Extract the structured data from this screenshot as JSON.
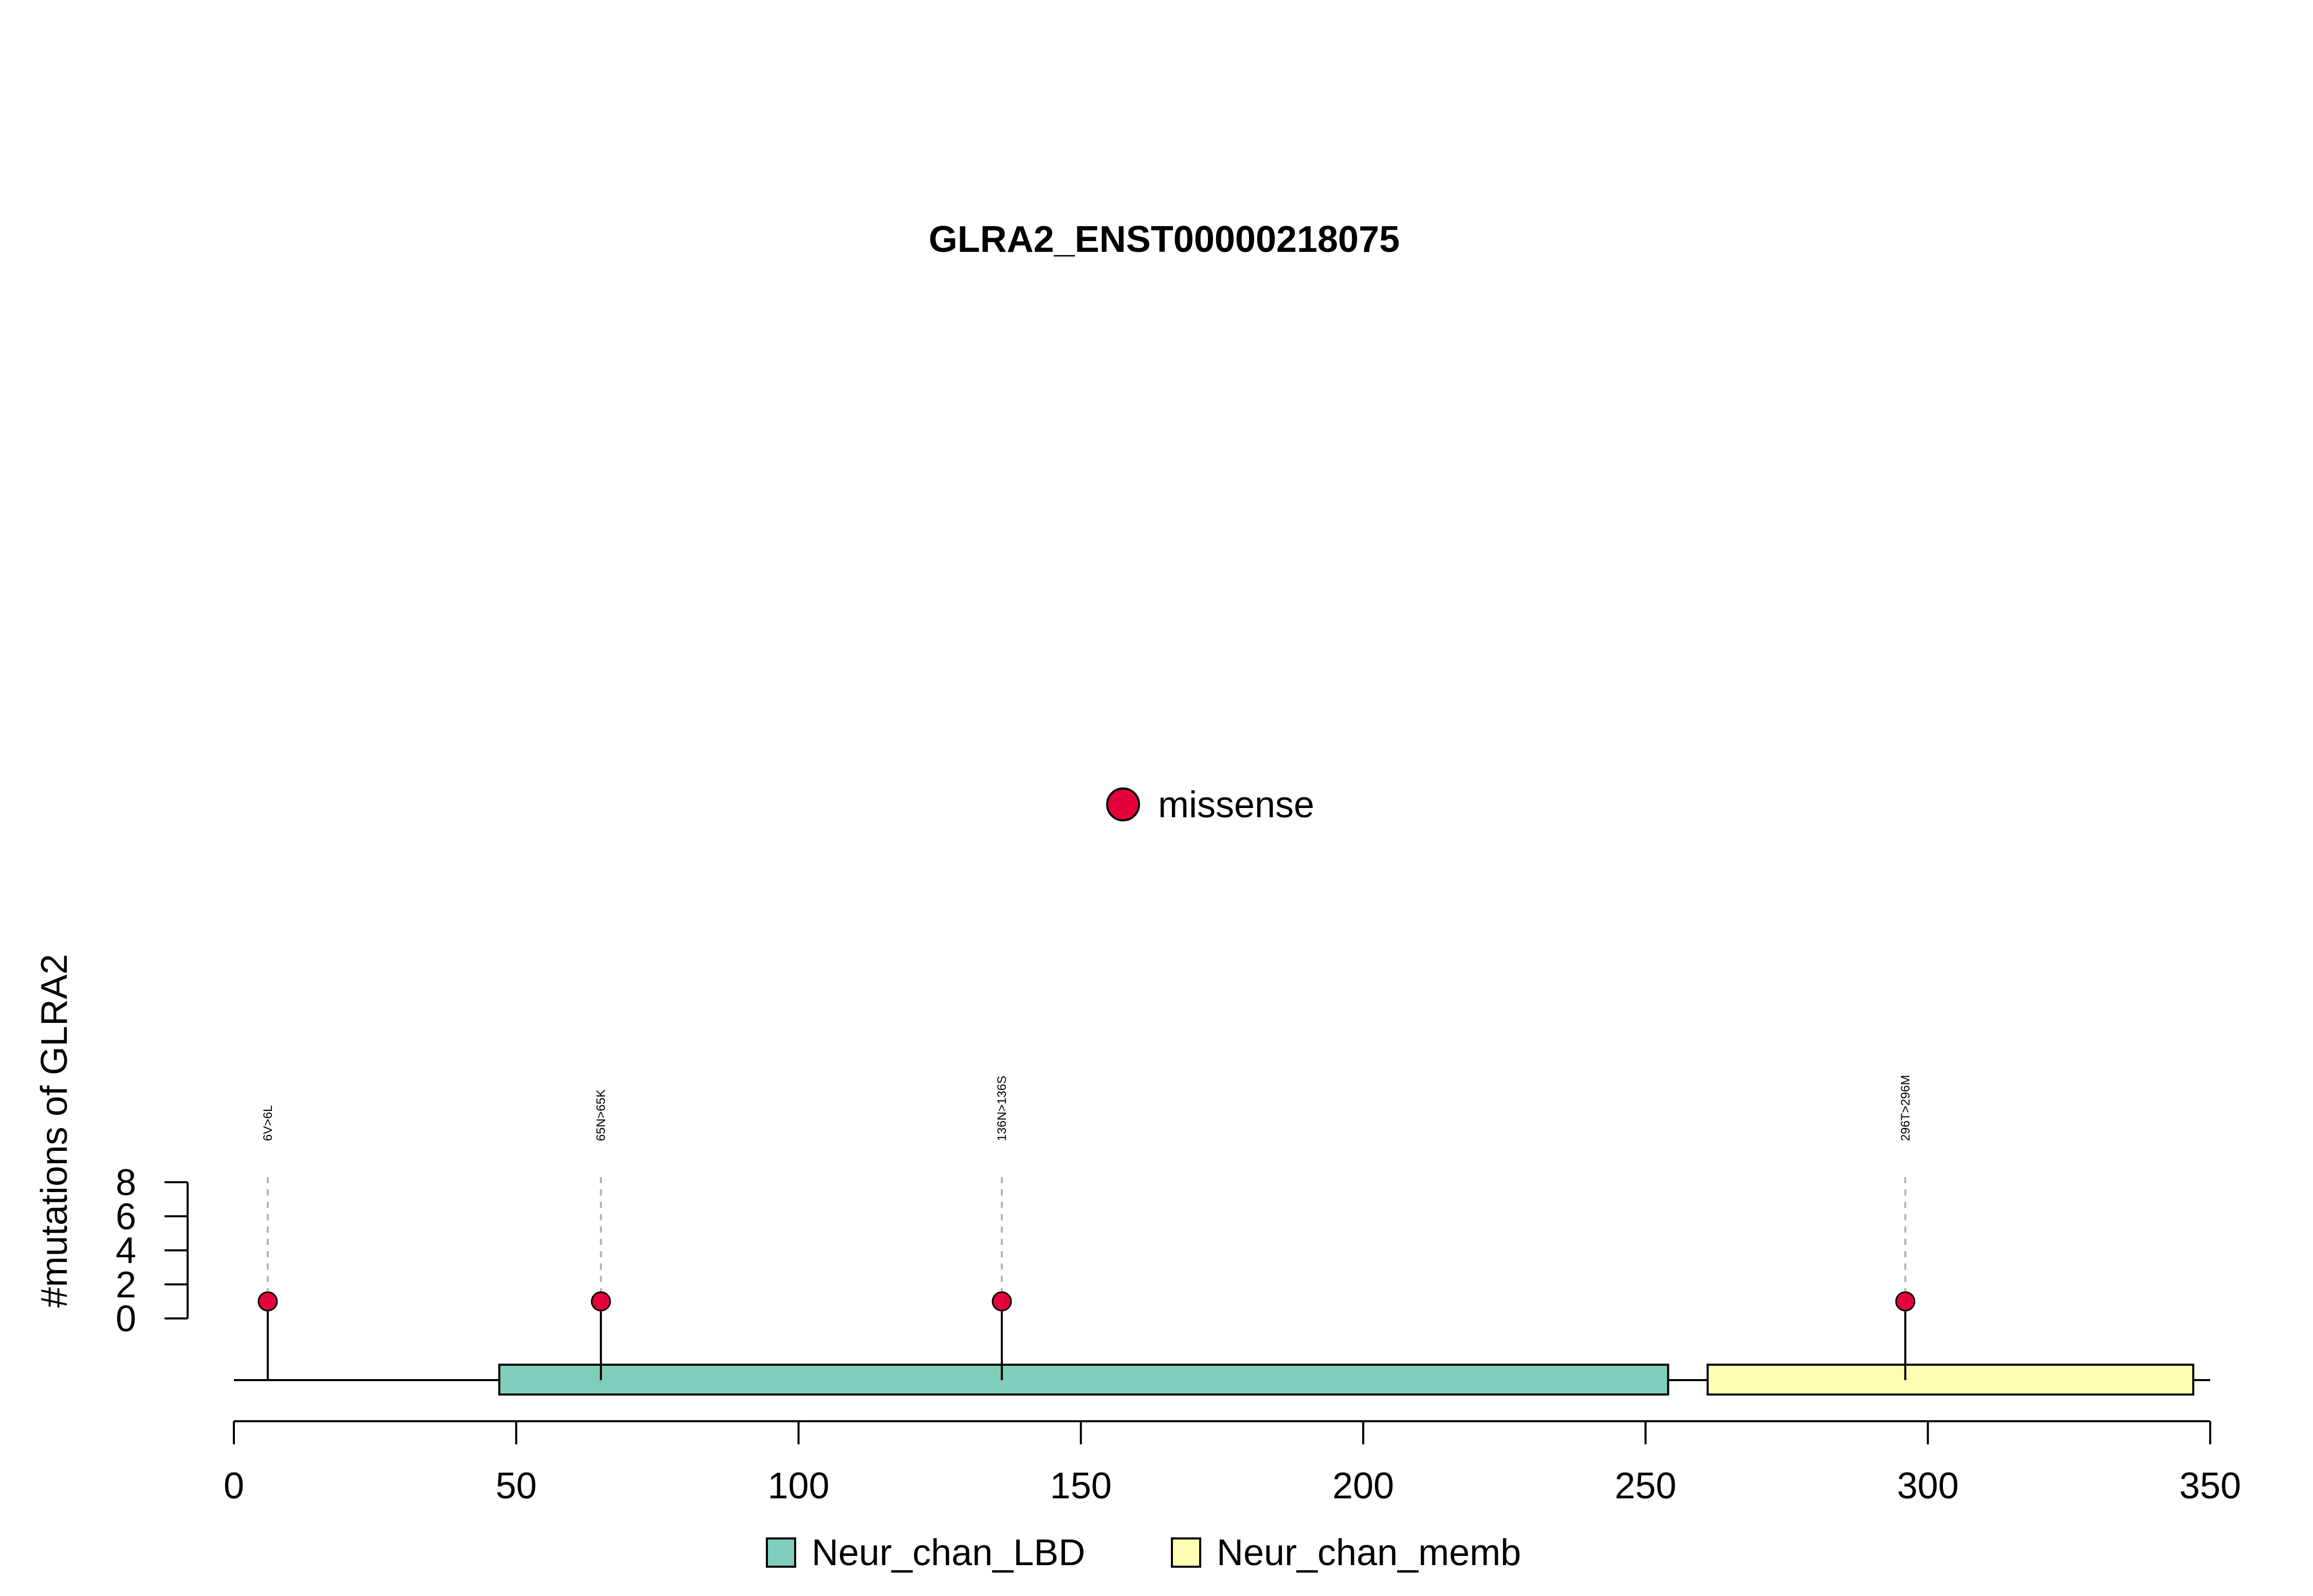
{
  "chart_data": {
    "type": "lollipop",
    "title": "GLRA2_ENST00000218075",
    "ylabel": "#mutations of GLRA2",
    "xlim": [
      0,
      350
    ],
    "x_ticks": [
      0,
      50,
      100,
      150,
      200,
      250,
      300,
      350
    ],
    "ylim": [
      0,
      8
    ],
    "y_ticks": [
      0,
      2,
      4,
      6,
      8
    ],
    "protein_length": 348,
    "mutations": [
      {
        "position": 6,
        "label": "6V>6L",
        "count": 1,
        "type": "missense"
      },
      {
        "position": 65,
        "label": "65N>65K",
        "count": 1,
        "type": "missense"
      },
      {
        "position": 136,
        "label": "136N>136S",
        "count": 1,
        "type": "missense"
      },
      {
        "position": 296,
        "label": "296T>296M",
        "count": 1,
        "type": "missense"
      }
    ],
    "domains": [
      {
        "name": "Neur_chan_LBD",
        "start": 47,
        "end": 254,
        "color": "#7fcdbb"
      },
      {
        "name": "Neur_chan_memb",
        "start": 261,
        "end": 347,
        "color": "#ffffb2"
      }
    ],
    "mutation_legend": [
      {
        "name": "missense",
        "color": "#e3003b"
      }
    ],
    "domain_legend": [
      {
        "name": "Neur_chan_LBD",
        "color": "#7fcdbb"
      },
      {
        "name": "Neur_chan_memb",
        "color": "#ffffb2"
      }
    ]
  }
}
